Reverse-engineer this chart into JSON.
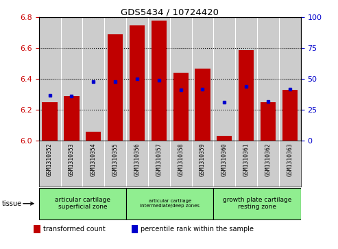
{
  "title": "GDS5434 / 10724420",
  "samples": [
    "GSM1310352",
    "GSM1310353",
    "GSM1310354",
    "GSM1310355",
    "GSM1310356",
    "GSM1310357",
    "GSM1310358",
    "GSM1310359",
    "GSM1310360",
    "GSM1310361",
    "GSM1310362",
    "GSM1310363"
  ],
  "transformed_count": [
    6.25,
    6.29,
    6.06,
    6.69,
    6.75,
    6.78,
    6.44,
    6.47,
    6.03,
    6.59,
    6.25,
    6.33
  ],
  "percentile_rank": [
    37,
    36,
    48,
    48,
    50,
    49,
    41,
    42,
    31,
    44,
    32,
    42
  ],
  "bar_color": "#c00000",
  "dot_color": "#0000cc",
  "ylim_left": [
    6.0,
    6.8
  ],
  "ylim_right": [
    0,
    100
  ],
  "yticks_left": [
    6.0,
    6.2,
    6.4,
    6.6,
    6.8
  ],
  "yticks_right": [
    0,
    25,
    50,
    75,
    100
  ],
  "groups": [
    {
      "label": "articular cartilage\nsuperficial zone",
      "start": 0,
      "end": 3,
      "fontsize": 9
    },
    {
      "label": "articular cartilage\nintermediate/deep zones",
      "start": 4,
      "end": 7,
      "fontsize": 7
    },
    {
      "label": "growth plate cartilage\nresting zone",
      "start": 8,
      "end": 11,
      "fontsize": 9
    }
  ],
  "group_color": "#90ee90",
  "sample_bg_color": "#cccccc",
  "plot_bg_color": "#cccccc",
  "tissue_label": "tissue",
  "legend_bar_label": "transformed count",
  "legend_dot_label": "percentile rank within the sample",
  "base_value": 6.0,
  "tick_color_left": "#cc0000",
  "tick_color_right": "#0000cc"
}
